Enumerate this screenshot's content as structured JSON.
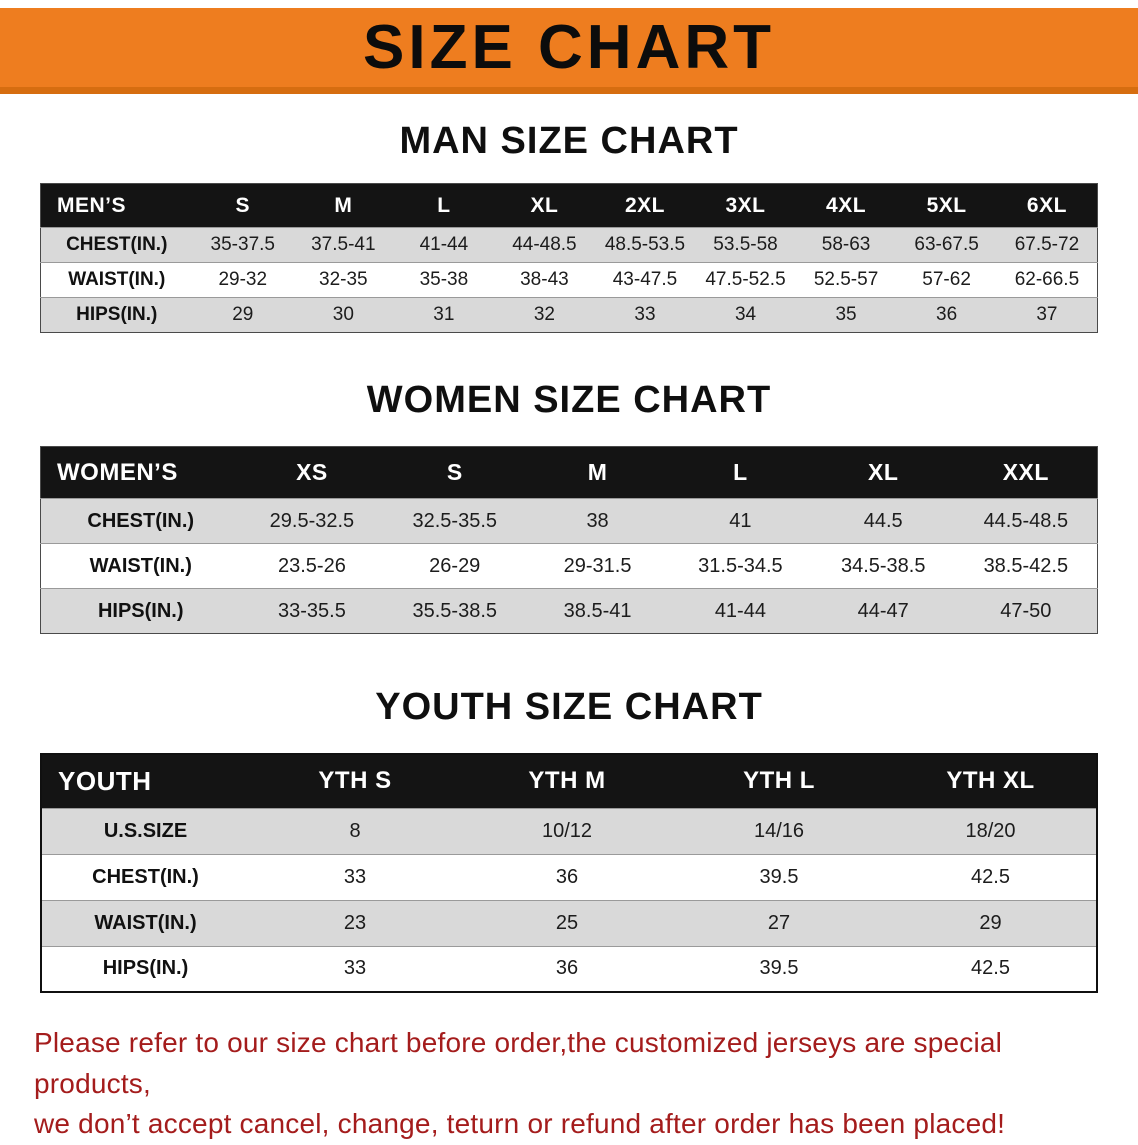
{
  "banner": {
    "title": "SIZE CHART"
  },
  "colors": {
    "banner_orange": "#ee7d1f",
    "banner_orange_dark": "#d66d10",
    "table_header_black": "#141414",
    "stripe_gray": "#d9d9d9",
    "note_red": "#a41c1c"
  },
  "sections": {
    "men": {
      "heading": "MAN SIZE CHART",
      "header": [
        "MEN’S",
        "S",
        "M",
        "L",
        "XL",
        "2XL",
        "3XL",
        "4XL",
        "5XL",
        "6XL"
      ],
      "rows": [
        [
          "CHEST(IN.)",
          "35-37.5",
          "37.5-41",
          "41-44",
          "44-48.5",
          "48.5-53.5",
          "53.5-58",
          "58-63",
          "63-67.5",
          "67.5-72"
        ],
        [
          "WAIST(IN.)",
          "29-32",
          "32-35",
          "35-38",
          "38-43",
          "43-47.5",
          "47.5-52.5",
          "52.5-57",
          "57-62",
          "62-66.5"
        ],
        [
          "HIPS(IN.)",
          "29",
          "30",
          "31",
          "32",
          "33",
          "34",
          "35",
          "36",
          "37"
        ]
      ]
    },
    "women": {
      "heading": "WOMEN SIZE CHART",
      "header": [
        "WOMEN’S",
        "XS",
        "S",
        "M",
        "L",
        "XL",
        "XXL"
      ],
      "rows": [
        [
          "CHEST(IN.)",
          "29.5-32.5",
          "32.5-35.5",
          "38",
          "41",
          "44.5",
          "44.5-48.5"
        ],
        [
          "WAIST(IN.)",
          "23.5-26",
          "26-29",
          "29-31.5",
          "31.5-34.5",
          "34.5-38.5",
          "38.5-42.5"
        ],
        [
          "HIPS(IN.)",
          "33-35.5",
          "35.5-38.5",
          "38.5-41",
          "41-44",
          "44-47",
          "47-50"
        ]
      ]
    },
    "youth": {
      "heading": "YOUTH SIZE CHART",
      "header": [
        "YOUTH",
        "YTH S",
        "YTH M",
        "YTH L",
        "YTH XL"
      ],
      "rows": [
        [
          "U.S.SIZE",
          "8",
          "10/12",
          "14/16",
          "18/20"
        ],
        [
          "CHEST(IN.)",
          "33",
          "36",
          "39.5",
          "42.5"
        ],
        [
          "WAIST(IN.)",
          "23",
          "25",
          "27",
          "29"
        ],
        [
          "HIPS(IN.)",
          "33",
          "36",
          "39.5",
          "42.5"
        ]
      ]
    }
  },
  "note": {
    "line1": "Please refer to our size chart before order,the customized jerseys are special products,",
    "line2": "we don’t accept cancel, change, teturn or refund after order has been placed!"
  }
}
